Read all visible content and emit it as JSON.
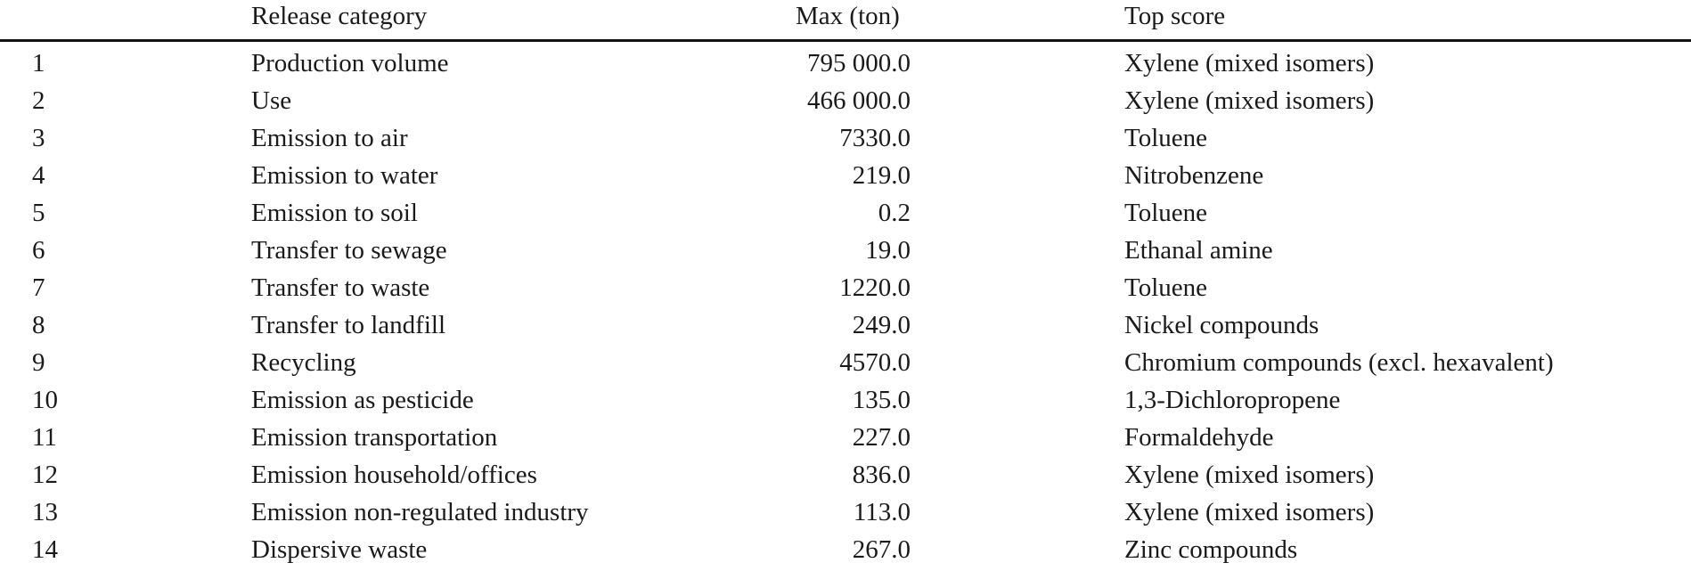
{
  "table": {
    "headers": {
      "number": "",
      "category": "Release category",
      "max": "Max (ton)",
      "top": "Top score"
    },
    "rows": [
      {
        "num": "1",
        "category": "Production volume",
        "max": "795 000.0",
        "top": "Xylene (mixed isomers)"
      },
      {
        "num": "2",
        "category": "Use",
        "max": "466 000.0",
        "top": "Xylene (mixed isomers)"
      },
      {
        "num": "3",
        "category": "Emission to air",
        "max": "7330.0",
        "top": "Toluene"
      },
      {
        "num": "4",
        "category": "Emission to water",
        "max": "219.0",
        "top": "Nitrobenzene"
      },
      {
        "num": "5",
        "category": "Emission to soil",
        "max": "0.2",
        "top": "Toluene"
      },
      {
        "num": "6",
        "category": "Transfer to sewage",
        "max": "19.0",
        "top": "Ethanal amine"
      },
      {
        "num": "7",
        "category": "Transfer to waste",
        "max": "1220.0",
        "top": "Toluene"
      },
      {
        "num": "8",
        "category": "Transfer to landfill",
        "max": "249.0",
        "top": "Nickel compounds"
      },
      {
        "num": "9",
        "category": "Recycling",
        "max": "4570.0",
        "top": "Chromium compounds (excl. hexavalent)"
      },
      {
        "num": "10",
        "category": "Emission as pesticide",
        "max": "135.0",
        "top": "1,3-Dichloropropene"
      },
      {
        "num": "11",
        "category": "Emission transportation",
        "max": "227.0",
        "top": "Formaldehyde"
      },
      {
        "num": "12",
        "category": "Emission household/offices",
        "max": "836.0",
        "top": "Xylene (mixed isomers)"
      },
      {
        "num": "13",
        "category": "Emission non-regulated industry",
        "max": "113.0",
        "top": "Xylene (mixed isomers)"
      },
      {
        "num": "14",
        "category": "Dispersive waste",
        "max": "267.0",
        "top": "Zinc compounds"
      }
    ]
  }
}
